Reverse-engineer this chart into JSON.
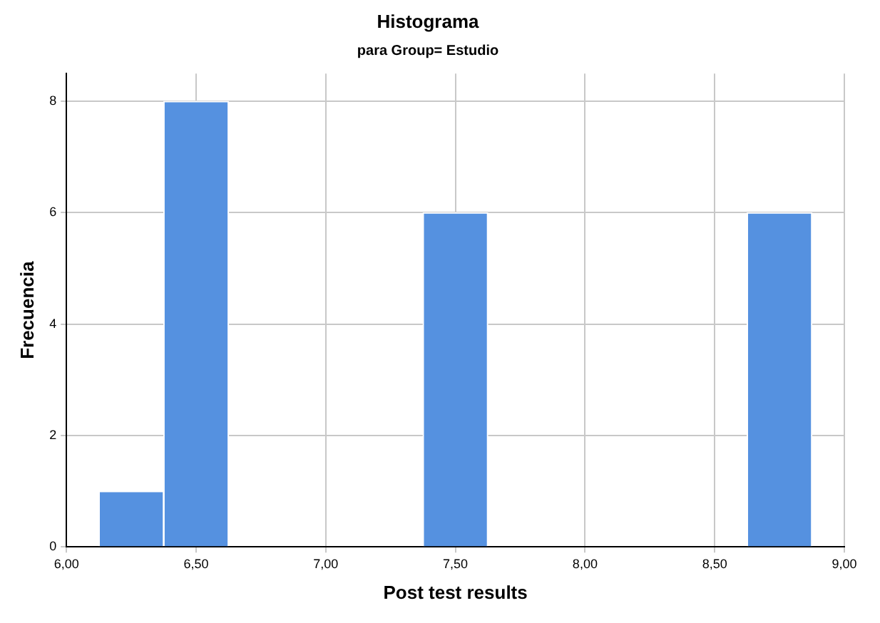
{
  "chart_data": {
    "type": "histogram",
    "title": "Histograma",
    "subtitle": "para Group= Estudio",
    "xlabel": "Post test results",
    "ylabel": "Frecuencia",
    "bins": [
      6.125,
      6.375,
      6.625,
      6.875,
      7.125,
      7.375,
      7.625,
      7.875,
      8.125,
      8.375,
      8.625,
      8.875
    ],
    "values": [
      1,
      8,
      0,
      0,
      0,
      6,
      0,
      0,
      0,
      0,
      6
    ],
    "color": "#5591e0",
    "xlim": [
      6,
      9
    ],
    "xticks": [
      {
        "value": 6,
        "label": "6,00"
      },
      {
        "value": 6.5,
        "label": "6,50"
      },
      {
        "value": 7,
        "label": "7,00"
      },
      {
        "value": 7.5,
        "label": "7,50"
      },
      {
        "value": 8,
        "label": "8,00"
      },
      {
        "value": 8.5,
        "label": "8,50"
      },
      {
        "value": 9,
        "label": "9,00"
      }
    ],
    "ylim": [
      0,
      8.5
    ],
    "yticks": [
      0,
      2,
      4,
      6,
      8
    ],
    "grid": true
  }
}
